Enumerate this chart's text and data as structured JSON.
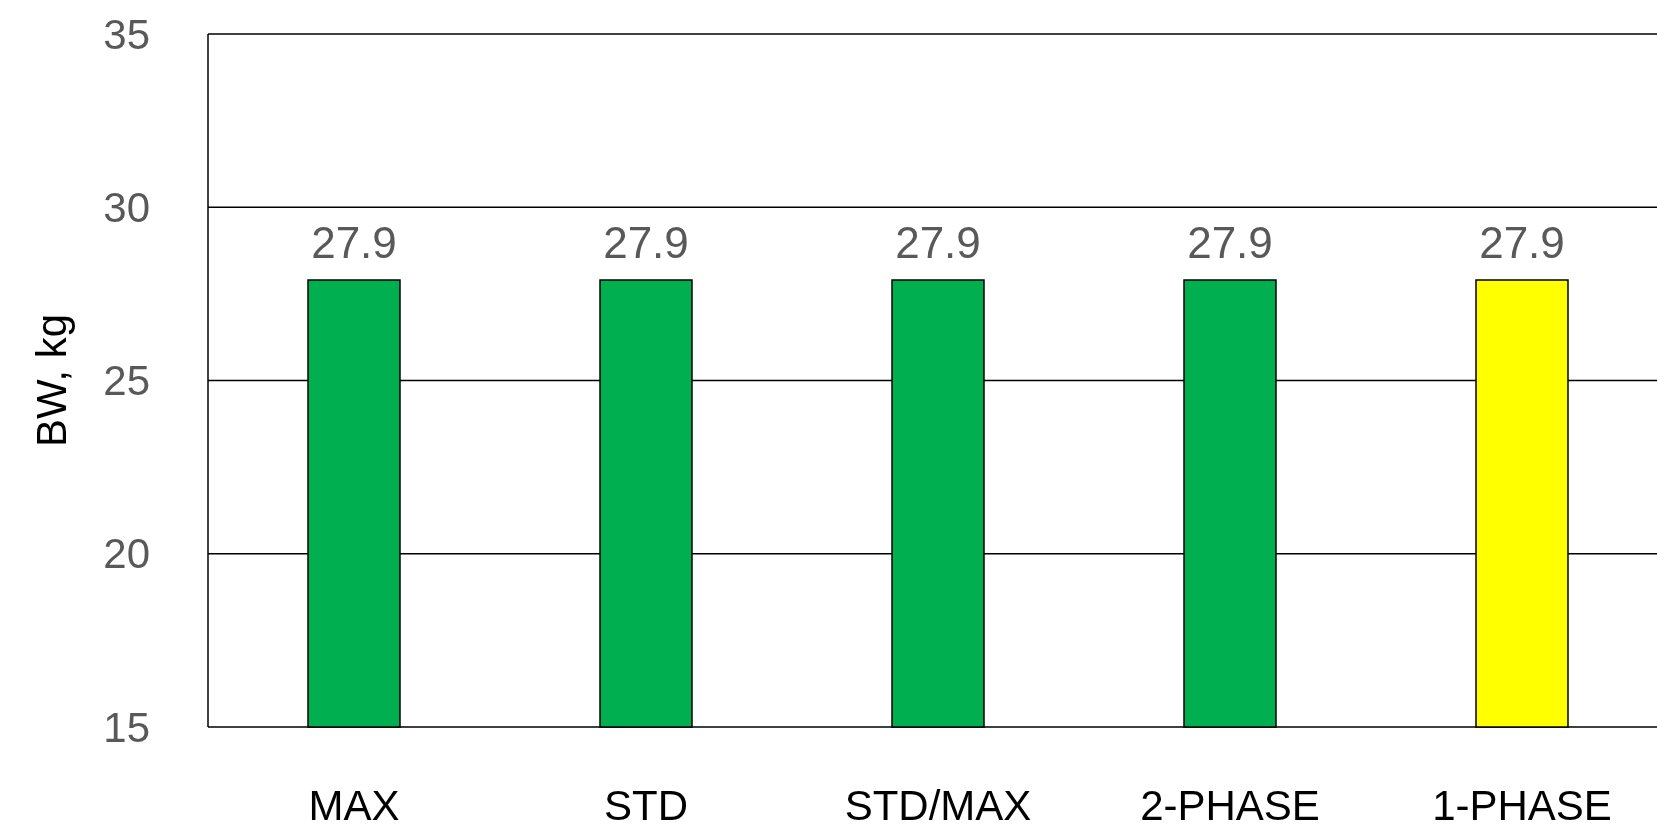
{
  "chart_data": {
    "type": "bar",
    "ylabel": "BW, kg",
    "categories": [
      "MAX",
      "STD",
      "STD/MAX",
      "2-PHASE",
      "1-PHASE"
    ],
    "values": [
      27.9,
      27.9,
      27.9,
      27.9,
      27.9
    ],
    "colors": [
      "#00b050",
      "#00b050",
      "#00b050",
      "#00b050",
      "#ffff00"
    ],
    "ylim": [
      15,
      35
    ],
    "yticks": [
      15,
      20,
      25,
      30,
      35
    ],
    "grid": "y",
    "data_labels": true
  }
}
